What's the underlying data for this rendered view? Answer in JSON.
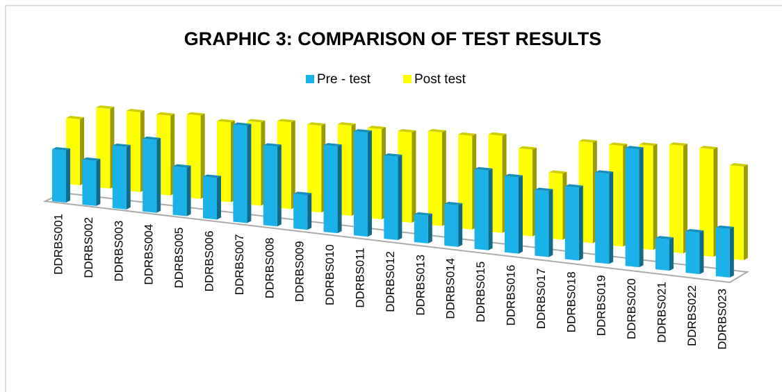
{
  "chart_data": {
    "type": "bar3d",
    "title": "GRAPHIC 3: COMPARISON OF TEST RESULTS",
    "categories": [
      "DDRBS001",
      "DDRBS002",
      "DDRBS003",
      "DDRBS004",
      "DDRBS005",
      "DDRBS006",
      "DDRBS007",
      "DDRBS008",
      "DDRBS009",
      "DDRBS010",
      "DDRBS011",
      "DDRBS012",
      "DDRBS013",
      "DDRBS014",
      "DDRBS015",
      "DDRBS016",
      "DDRBS017",
      "DDRBS018",
      "DDRBS019",
      "DDRBS020",
      "DDRBS021",
      "DDRBS022",
      "DDRBS023"
    ],
    "series": [
      {
        "name": "Pre - test",
        "color": "#1ab2e8",
        "values": [
          7.5,
          6.5,
          9,
          10.5,
          7,
          6,
          14,
          11.5,
          5,
          12.5,
          15,
          12,
          4,
          6,
          11.5,
          11,
          9.5,
          10.5,
          13,
          17,
          4.5,
          6,
          7
        ]
      },
      {
        "name": "Post test",
        "color": "#ffff00",
        "values": [
          9.5,
          11.5,
          11.5,
          11.5,
          12,
          11.5,
          12,
          12.5,
          12.5,
          13,
          13,
          13,
          13.5,
          13.5,
          14,
          12.5,
          9.5,
          14.5,
          14.5,
          15,
          15.5,
          15.5,
          13.5
        ]
      }
    ],
    "legend": "top"
  }
}
